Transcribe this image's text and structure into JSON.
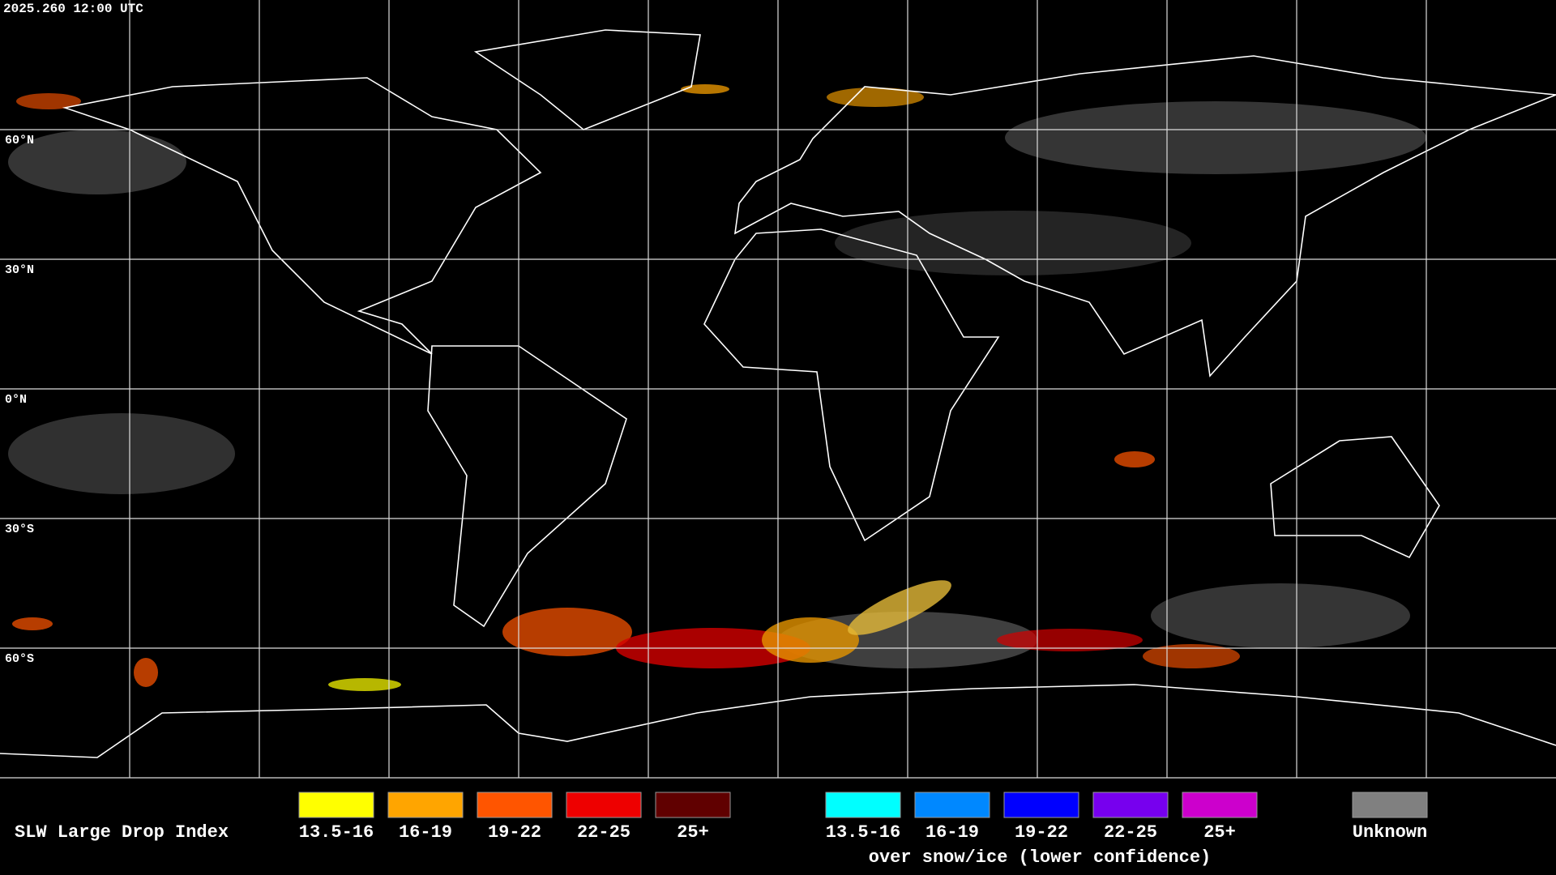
{
  "header": {
    "timestamp": "2025.260 12:00 UTC"
  },
  "map": {
    "latitude_labels": [
      "60°N",
      "30°N",
      "0°N",
      "30°S",
      "60°S"
    ]
  },
  "legend": {
    "title": "SLW Large Drop Index",
    "classes": [
      {
        "label": "13.5-16",
        "color": "#ffff00"
      },
      {
        "label": "16-19",
        "color": "#ffa500"
      },
      {
        "label": "19-22",
        "color": "#ff5500"
      },
      {
        "label": "22-25",
        "color": "#ee0000"
      },
      {
        "label": "25+",
        "color": "#600000"
      }
    ],
    "snow_ice_classes": [
      {
        "label": "13.5-16",
        "color": "#00ffff"
      },
      {
        "label": "16-19",
        "color": "#0088ff"
      },
      {
        "label": "19-22",
        "color": "#0000ff"
      },
      {
        "label": "22-25",
        "color": "#7700ee"
      },
      {
        "label": "25+",
        "color": "#cc00cc"
      }
    ],
    "snow_ice_caption": "over snow/ice (lower confidence)",
    "unknown": {
      "label": "Unknown",
      "color": "#808080"
    }
  }
}
